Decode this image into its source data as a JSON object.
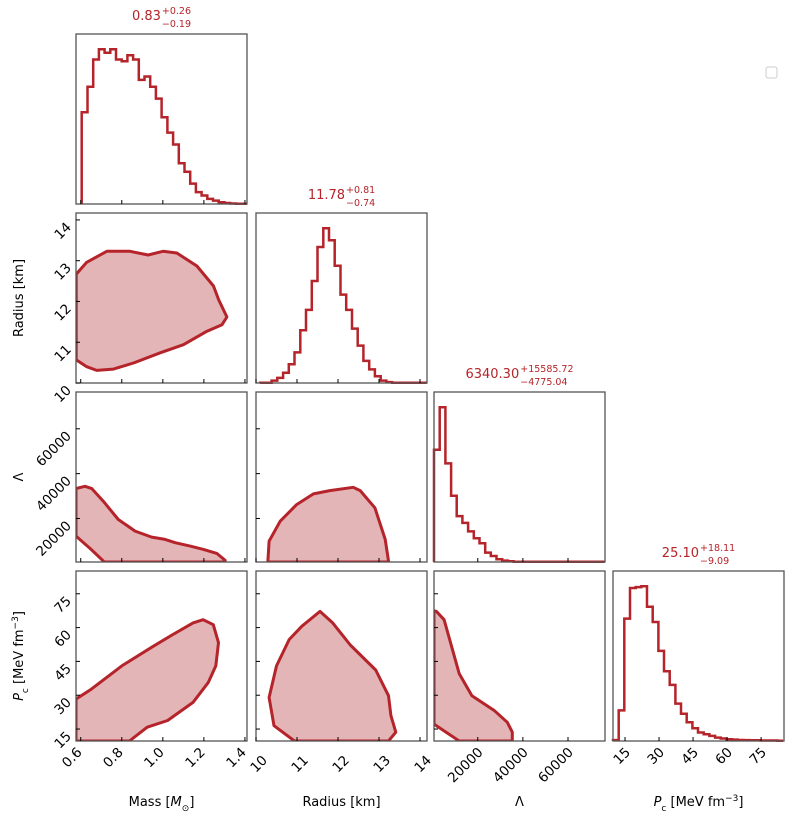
{
  "colors": {
    "line": "#b5242a",
    "fill": "#e4b5b7",
    "title": "#b5242a",
    "axes": "#555555"
  },
  "legend": {
    "entries": [],
    "placement": "upper-right"
  },
  "chart_data": {
    "type": "corner",
    "parameters": [
      {
        "key": "mass",
        "range": [
          0.577,
          1.41
        ],
        "ticks": [
          "0.6",
          "0.8",
          "1.0",
          "1.2",
          "1.4"
        ],
        "tick_values": [
          0.6,
          0.8,
          1.0,
          1.2,
          1.4
        ],
        "label": {
          "pre": "Mass [",
          "italic": "M",
          "sub": "⊙",
          "post": "]"
        },
        "title": {
          "median": "0.83",
          "plus": "+0.26",
          "minus": "−0.19"
        },
        "hist": {
          "bin_start": 0.605,
          "bin_width": 0.0278,
          "values": [
            0.54,
            0.69,
            0.85,
            0.91,
            0.89,
            0.91,
            0.85,
            0.84,
            0.875,
            0.85,
            0.73,
            0.75,
            0.69,
            0.62,
            0.51,
            0.42,
            0.35,
            0.24,
            0.19,
            0.12,
            0.07,
            0.05,
            0.03,
            0.02,
            0.01,
            0.006,
            0.003,
            0.002,
            0.001
          ]
        }
      },
      {
        "key": "radius",
        "range": [
          10.0,
          14.17
        ],
        "ticks": [
          "10",
          "11",
          "12",
          "13",
          "14"
        ],
        "tick_values": [
          10,
          11,
          12,
          13,
          14
        ],
        "label": {
          "pre": "Radius [km]",
          "italic": "",
          "sub": "",
          "post": ""
        },
        "title": {
          "median": "11.78",
          "plus": "+0.81",
          "minus": "−0.74"
        },
        "hist": {
          "bin_start": 10.1,
          "bin_width": 0.14,
          "values": [
            0.001,
            0.002,
            0.014,
            0.03,
            0.06,
            0.11,
            0.18,
            0.31,
            0.43,
            0.6,
            0.8,
            0.91,
            0.84,
            0.69,
            0.52,
            0.43,
            0.32,
            0.22,
            0.13,
            0.08,
            0.04,
            0.014,
            0.005,
            0.002,
            0.001,
            0.001,
            0.001,
            0.001,
            0.001
          ]
        }
      },
      {
        "key": "lambda",
        "range": [
          600,
          76400
        ],
        "ticks": [
          "20000",
          "40000",
          "60000"
        ],
        "tick_values": [
          20000,
          40000,
          60000
        ],
        "label": {
          "pre": "Λ",
          "italic": "",
          "sub": "",
          "post": ""
        },
        "title": {
          "median": "6340.30",
          "plus": "+15585.72",
          "minus": "−4775.04"
        },
        "hist": {
          "bin_start": 600,
          "bin_width": 2520,
          "values": [
            0.66,
            0.91,
            0.58,
            0.39,
            0.27,
            0.23,
            0.18,
            0.14,
            0.11,
            0.055,
            0.035,
            0.016,
            0.008,
            0.004,
            0.002,
            0.002,
            0.002,
            0.002,
            0.002,
            0.002,
            0.002,
            0.002,
            0.002,
            0.002,
            0.002,
            0.002,
            0.002,
            0.002,
            0.002,
            0.002
          ]
        }
      },
      {
        "key": "pc",
        "range": [
          9.7,
          85.1
        ],
        "ticks": [
          "15",
          "30",
          "45",
          "60",
          "75"
        ],
        "tick_values": [
          15,
          30,
          45,
          60,
          75
        ],
        "label": {
          "pre": "",
          "italic": "P",
          "sub": "c",
          "post": " [MeV fm",
          "sup": "−3",
          "close": "]"
        },
        "title": {
          "median": "25.10",
          "plus": "+18.11",
          "minus": "−9.09"
        },
        "hist": {
          "bin_start": 9.7,
          "bin_width": 2.5,
          "values": [
            0.005,
            0.18,
            0.72,
            0.9,
            0.905,
            0.91,
            0.79,
            0.7,
            0.53,
            0.41,
            0.33,
            0.22,
            0.16,
            0.11,
            0.075,
            0.05,
            0.04,
            0.03,
            0.02,
            0.015,
            0.01,
            0.008,
            0.006,
            0.005,
            0.004,
            0.004,
            0.003,
            0.003,
            0.003,
            0.002
          ]
        }
      }
    ],
    "contours": [
      {
        "x": "mass",
        "y": "radius",
        "points": [
          [
            0.578,
            12.67
          ],
          [
            0.629,
            12.96
          ],
          [
            0.727,
            13.23
          ],
          [
            0.84,
            13.23
          ],
          [
            0.928,
            13.14
          ],
          [
            1.001,
            13.23
          ],
          [
            1.068,
            13.19
          ],
          [
            1.166,
            12.87
          ],
          [
            1.247,
            12.38
          ],
          [
            1.271,
            12.05
          ],
          [
            1.312,
            11.62
          ],
          [
            1.288,
            11.43
          ],
          [
            1.215,
            11.27
          ],
          [
            1.1,
            10.94
          ],
          [
            0.987,
            10.74
          ],
          [
            0.857,
            10.49
          ],
          [
            0.759,
            10.34
          ],
          [
            0.678,
            10.31
          ],
          [
            0.629,
            10.4
          ],
          [
            0.578,
            10.57
          ]
        ]
      },
      {
        "x": "mass",
        "y": "lambda",
        "points": [
          [
            0.577,
            33330
          ],
          [
            0.621,
            34360
          ],
          [
            0.654,
            33330
          ],
          [
            0.71,
            27700
          ],
          [
            0.783,
            19560
          ],
          [
            0.865,
            14360
          ],
          [
            0.946,
            11700
          ],
          [
            1.011,
            10670
          ],
          [
            1.06,
            9200
          ],
          [
            1.133,
            7700
          ],
          [
            1.198,
            6220
          ],
          [
            1.263,
            4440
          ],
          [
            1.304,
            1330
          ],
          [
            1.3,
            600
          ],
          [
            0.71,
            600
          ],
          [
            0.71,
            1030
          ],
          [
            0.645,
            6670
          ],
          [
            0.577,
            12130
          ]
        ]
      },
      {
        "x": "radius",
        "y": "lambda",
        "points": [
          [
            10.29,
            600
          ],
          [
            10.29,
            1030
          ],
          [
            10.32,
            9900
          ],
          [
            10.59,
            18800
          ],
          [
            10.99,
            26200
          ],
          [
            11.4,
            30980
          ],
          [
            11.8,
            32440
          ],
          [
            12.37,
            33910
          ],
          [
            12.54,
            32440
          ],
          [
            12.9,
            24760
          ],
          [
            13.15,
            10670
          ],
          [
            13.23,
            1030
          ],
          [
            13.23,
            600
          ]
        ]
      },
      {
        "x": "mass",
        "y": "pc",
        "points": [
          [
            0.577,
            28.3
          ],
          [
            0.652,
            32.7
          ],
          [
            0.8,
            43.0
          ],
          [
            0.949,
            51.5
          ],
          [
            1.048,
            56.9
          ],
          [
            1.147,
            62.1
          ],
          [
            1.196,
            63.5
          ],
          [
            1.246,
            61.3
          ],
          [
            1.271,
            53.3
          ],
          [
            1.258,
            43.0
          ],
          [
            1.221,
            35.6
          ],
          [
            1.147,
            26.8
          ],
          [
            1.023,
            18.8
          ],
          [
            0.924,
            15.8
          ],
          [
            0.837,
            9.7
          ],
          [
            0.577,
            9.7
          ]
        ]
      },
      {
        "x": "radius",
        "y": "pc",
        "points": [
          [
            10.94,
            9.7
          ],
          [
            10.44,
            16.5
          ],
          [
            10.32,
            29.0
          ],
          [
            10.5,
            43.0
          ],
          [
            10.81,
            54.7
          ],
          [
            11.12,
            60.6
          ],
          [
            11.56,
            67.2
          ],
          [
            11.87,
            62.1
          ],
          [
            12.3,
            52.3
          ],
          [
            12.92,
            41.2
          ],
          [
            13.23,
            29.8
          ],
          [
            13.29,
            21.0
          ],
          [
            13.41,
            13.6
          ],
          [
            13.23,
            9.7
          ]
        ]
      },
      {
        "x": "lambda",
        "y": "pc",
        "points": [
          [
            600,
            67.5
          ],
          [
            1680,
            67.2
          ],
          [
            5080,
            63.5
          ],
          [
            8430,
            51.5
          ],
          [
            11790,
            39.6
          ],
          [
            17400,
            29.8
          ],
          [
            27460,
            23.1
          ],
          [
            33070,
            18.0
          ],
          [
            35320,
            13.6
          ],
          [
            35320,
            9.7
          ],
          [
            11790,
            9.7
          ],
          [
            1680,
            16.5
          ],
          [
            600,
            17.2
          ]
        ]
      }
    ]
  }
}
